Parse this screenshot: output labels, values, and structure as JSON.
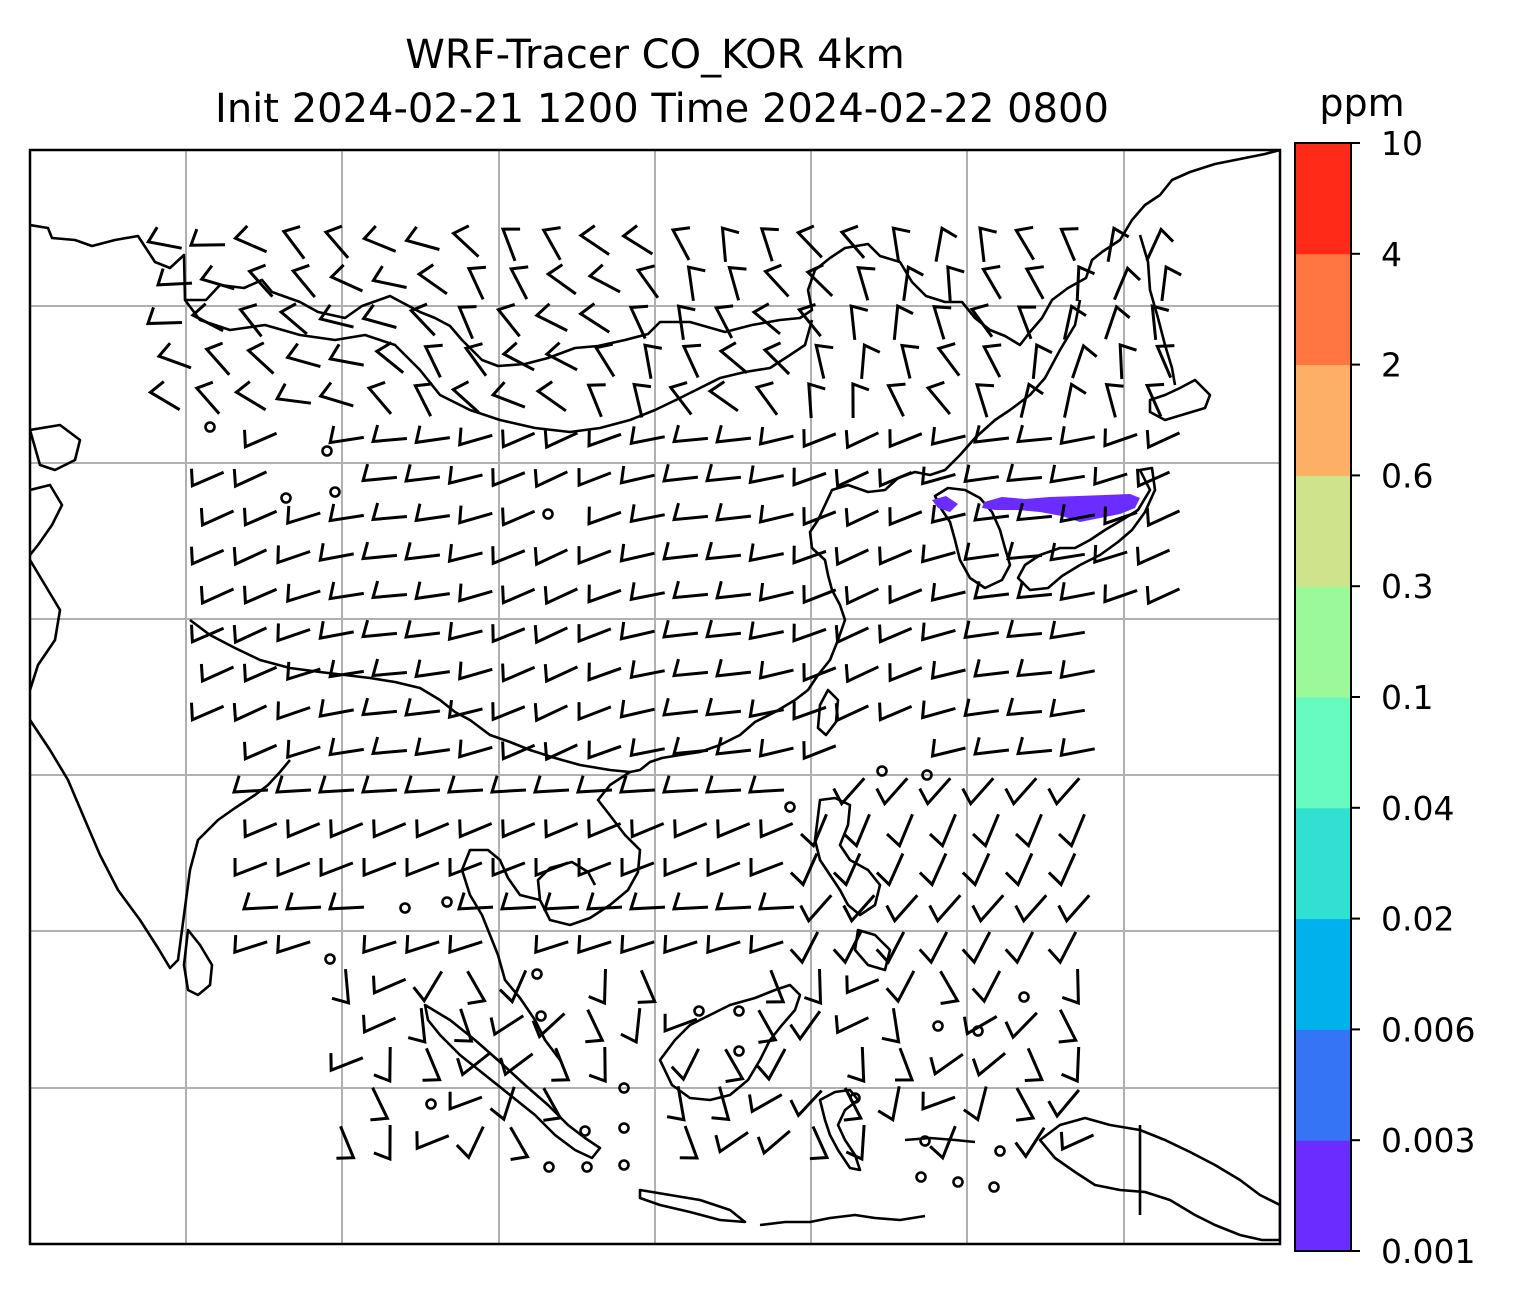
{
  "chart_data": {
    "type": "heatmap",
    "title": "WRF-Tracer CO_KOR 4km",
    "subtitle": "Init 2024-02-21 1200 Time 2024-02-22 0800",
    "map": {
      "projection": "plate carree",
      "gridlines": true,
      "coastlines": true,
      "overlay": "wind barbs",
      "region": "East Asia, Southeast Asia, Maritime Continent"
    },
    "colorbar": {
      "unit": "ppm",
      "ticks": [
        "0.001",
        "0.003",
        "0.006",
        "0.02",
        "0.04",
        "0.1",
        "0.3",
        "0.6",
        "2",
        "4",
        "10"
      ],
      "colors": [
        "#6a2cff",
        "#3575f5",
        "#00b1ec",
        "#31e0d0",
        "#68fbbf",
        "#9cf99a",
        "#cfe38a",
        "#fdb065",
        "#ff7640",
        "#ff2a17"
      ]
    },
    "tracer_plume": {
      "location": "east of the Korean peninsula over the East Sea",
      "concentration_bin": "0.001–0.003",
      "color": "#6a2cff"
    }
  }
}
